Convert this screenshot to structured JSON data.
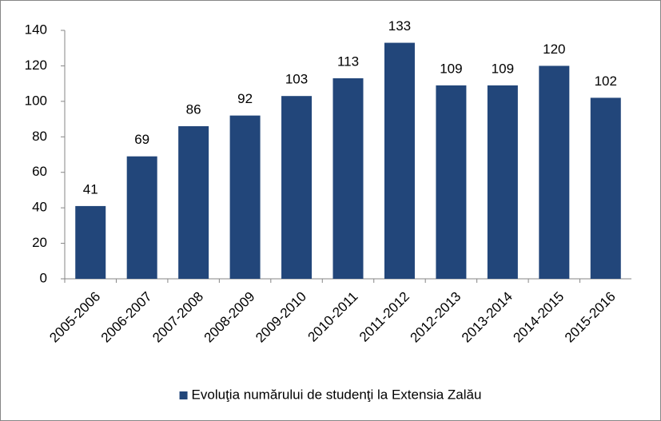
{
  "chart_data": {
    "type": "bar",
    "categories": [
      "2005-2006",
      "2006-2007",
      "2007-2008",
      "2008-2009",
      "2009-2010",
      "2010-2011",
      "2011-2012",
      "2012-2013",
      "2013-2014",
      "2014-2015",
      "2015-2016"
    ],
    "series": [
      {
        "name": "Evoluţia numărului de studenţi la Extensia Zalău",
        "color": "#22467a",
        "values": [
          41,
          69,
          86,
          92,
          103,
          113,
          133,
          109,
          109,
          120,
          102
        ]
      }
    ],
    "ylim": [
      0,
      140
    ],
    "yticks": [
      0,
      20,
      40,
      60,
      80,
      100,
      120,
      140
    ],
    "grid": false,
    "legend": "bottom"
  }
}
